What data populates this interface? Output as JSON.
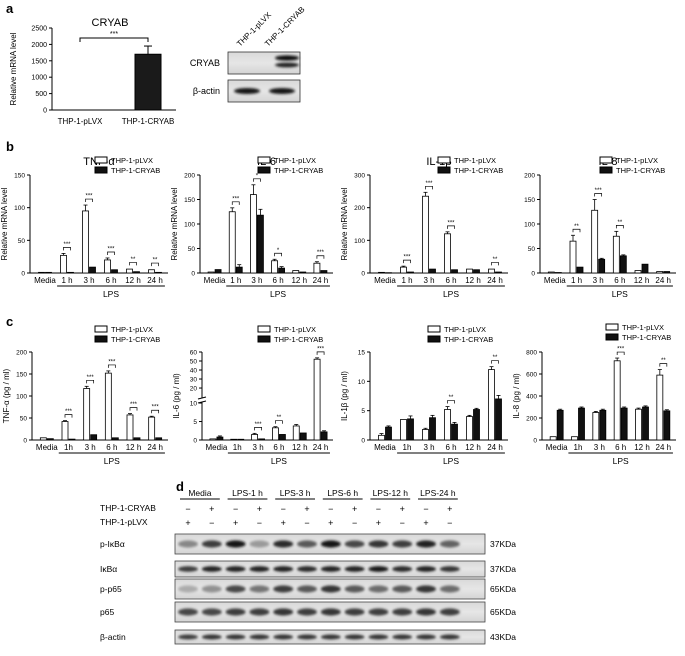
{
  "panel_labels": {
    "a": "a",
    "b": "b",
    "c": "c",
    "d": "d"
  },
  "legend": {
    "pLVX": "THP-1-pLVX",
    "CRYAB": "THP-1-CRYAB"
  },
  "time_points": [
    "Media",
    "1h",
    "3h",
    "6h",
    "12h",
    "24h"
  ],
  "panel_a": {
    "chart_data": {
      "type": "bar",
      "title": "CRYAB",
      "ylabel": "Relative mRNA level",
      "categories": [
        "THP-1-pLVX",
        "THP-1-CRYAB"
      ],
      "values": [
        0,
        1700
      ],
      "errors": [
        0,
        250
      ],
      "ylim": [
        0,
        2500
      ],
      "yticks": [
        0,
        500,
        1000,
        1500,
        2000,
        2500
      ],
      "significance": "***"
    },
    "blot": {
      "lanes": [
        "THP-1-pLVX",
        "THP-1-CRYAB"
      ],
      "rows": [
        "CRYAB",
        "β-actin"
      ]
    }
  },
  "panel_b": {
    "xlabel": "LPS",
    "ticklabels": [
      "Media",
      "1 h",
      "3 h",
      "6 h",
      "12 h",
      "24 h"
    ],
    "chart_data": [
      {
        "type": "bar",
        "title": "TNF-α",
        "ylabel": "Relative mRNA level",
        "ylim": [
          0,
          150
        ],
        "yticks": [
          0,
          50,
          100,
          150
        ],
        "series": [
          {
            "name": "THP-1-pLVX",
            "values": [
              1,
              27,
              95,
              20,
              6,
              5
            ],
            "errors": [
              0.5,
              3,
              9,
              3,
              1,
              1
            ]
          },
          {
            "name": "THP-1-CRYAB",
            "values": [
              1,
              1,
              9,
              5,
              2,
              1
            ],
            "errors": [
              0.3,
              0.3,
              1,
              1,
              0.5,
              0.3
            ]
          }
        ],
        "significance": [
          "",
          "***",
          "***",
          "***",
          "**",
          "**"
        ]
      },
      {
        "type": "bar",
        "title": "IL-6",
        "ylabel": "Relative mRNA level",
        "ylim": [
          0,
          200
        ],
        "yticks": [
          0,
          50,
          100,
          150,
          200
        ],
        "series": [
          {
            "name": "THP-1-pLVX",
            "values": [
              2,
              125,
              160,
              25,
              5,
              20
            ],
            "errors": [
              0.5,
              8,
              20,
              3,
              1,
              3
            ]
          },
          {
            "name": "THP-1-CRYAB",
            "values": [
              7,
              12,
              118,
              10,
              2,
              5
            ],
            "errors": [
              1,
              5,
              12,
              3,
              0.5,
              1
            ]
          }
        ],
        "significance": [
          "",
          "***",
          "*",
          "*",
          "",
          "***"
        ]
      },
      {
        "type": "bar",
        "title": "IL-1β",
        "ylabel": "Relative mRNA level",
        "ylim": [
          0,
          300
        ],
        "yticks": [
          0,
          100,
          200,
          300
        ],
        "series": [
          {
            "name": "THP-1-pLVX",
            "values": [
              2,
              18,
              235,
              120,
              12,
              12
            ],
            "errors": [
              0.5,
              3,
              12,
              6,
              2,
              2
            ]
          },
          {
            "name": "THP-1-CRYAB",
            "values": [
              1,
              3,
              12,
              10,
              10,
              3
            ],
            "errors": [
              0.3,
              1,
              1,
              1,
              1,
              0.5
            ]
          }
        ],
        "significance": [
          "",
          "***",
          "***",
          "***",
          "",
          "**"
        ]
      },
      {
        "type": "bar",
        "title": "IL-8",
        "ylabel": "",
        "ylim": [
          0,
          200
        ],
        "yticks": [
          0,
          50,
          100,
          150,
          200
        ],
        "series": [
          {
            "name": "THP-1-pLVX",
            "values": [
              2,
              65,
              128,
              75,
              5,
              3
            ],
            "errors": [
              0.5,
              12,
              22,
              10,
              1,
              1
            ]
          },
          {
            "name": "THP-1-CRYAB",
            "values": [
              1,
              12,
              28,
              35,
              18,
              3
            ],
            "errors": [
              0.3,
              1,
              2,
              2,
              1,
              0.5
            ]
          }
        ],
        "significance": [
          "",
          "**",
          "***",
          "**",
          "",
          ""
        ]
      }
    ]
  },
  "panel_c": {
    "xlabel": "LPS",
    "ticklabels": [
      "Media",
      "1h",
      "3 h",
      "6 h",
      "12 h",
      "24 h"
    ],
    "chart_data": [
      {
        "type": "bar",
        "title": "",
        "ylabel": "TNF-α (pg / ml)",
        "ylim": [
          0,
          200
        ],
        "yticks": [
          0,
          50,
          100,
          150,
          200
        ],
        "series": [
          {
            "name": "THP-1-pLVX",
            "values": [
              5,
              42,
              117,
              152,
              57,
              52
            ],
            "errors": [
              1,
              2,
              5,
              5,
              3,
              2
            ]
          },
          {
            "name": "THP-1-CRYAB",
            "values": [
              3,
              2,
              12,
              5,
              5,
              5
            ],
            "errors": [
              1,
              0.5,
              1,
              1,
              1,
              1
            ]
          }
        ],
        "significance": [
          "",
          "***",
          "***",
          "***",
          "***",
          "***"
        ]
      },
      {
        "type": "bar",
        "title": "",
        "ylabel": "IL-6 (pg / ml)",
        "axis_break": {
          "lower": [
            0,
            10
          ],
          "upper": [
            10,
            60
          ]
        },
        "yticks": [
          0,
          5,
          10,
          20,
          30,
          40,
          50,
          60
        ],
        "series": [
          {
            "name": "THP-1-pLVX",
            "values": [
              0.3,
              0.2,
              1.5,
              3.3,
              3.8,
              52
            ],
            "errors": [
              0.2,
              0.1,
              0.3,
              0.3,
              0.4,
              1.5
            ]
          },
          {
            "name": "THP-1-CRYAB",
            "values": [
              0.8,
              0.2,
              0.3,
              1.5,
              1.9,
              2.2
            ],
            "errors": [
              0.3,
              0.1,
              0.1,
              0.2,
              0.2,
              0.3
            ]
          }
        ],
        "significance": [
          "",
          "",
          "***",
          "**",
          "",
          "***"
        ]
      },
      {
        "type": "bar",
        "title": "",
        "ylabel": "IL-1β (pg / ml)",
        "ylim": [
          0,
          15
        ],
        "yticks": [
          0,
          5,
          10,
          15
        ],
        "series": [
          {
            "name": "THP-1-pLVX",
            "values": [
              0.8,
              3.5,
              1.8,
              5.2,
              4,
              12
            ],
            "errors": [
              0.3,
              0.1,
              0.2,
              0.5,
              0.2,
              0.5
            ]
          },
          {
            "name": "THP-1-CRYAB",
            "values": [
              2.2,
              3.6,
              3.8,
              2.7,
              5.2,
              7
            ],
            "errors": [
              0.2,
              0.5,
              0.4,
              0.3,
              0.2,
              0.6
            ]
          }
        ],
        "significance": [
          "",
          "",
          "",
          "**",
          "",
          "**"
        ]
      },
      {
        "type": "bar",
        "title": "",
        "ylabel": "IL-8 (pg / ml)",
        "ylim": [
          0,
          800
        ],
        "yticks": [
          0,
          200,
          400,
          600,
          800
        ],
        "series": [
          {
            "name": "THP-1-pLVX",
            "values": [
              30,
              30,
              250,
              720,
              280,
              590
            ],
            "errors": [
              5,
              5,
              10,
              25,
              10,
              50
            ]
          },
          {
            "name": "THP-1-CRYAB",
            "values": [
              270,
              290,
              270,
              290,
              300,
              265
            ],
            "errors": [
              10,
              10,
              10,
              10,
              10,
              10
            ]
          }
        ],
        "significance": [
          "",
          "",
          "",
          "***",
          "",
          "**"
        ]
      }
    ]
  },
  "panel_d": {
    "groups": [
      "Media",
      "LPS-1 h",
      "LPS-3 h",
      "LPS-6 h",
      "LPS-12 h",
      "LPS-24 h"
    ],
    "row_labels": [
      "THP-1-CRYAB",
      "THP-1-pLVX"
    ],
    "cryab_signs": [
      "−",
      "+",
      "−",
      "+",
      "−",
      "+",
      "−",
      "+",
      "−",
      "+",
      "−",
      "+"
    ],
    "plvx_signs": [
      "+",
      "−",
      "+",
      "−",
      "+",
      "−",
      "+",
      "−",
      "+",
      "−",
      "+",
      "−"
    ],
    "blots": [
      {
        "label": "p-IκBα",
        "kda": "37KDa"
      },
      {
        "label": "IκBα",
        "kda": "37KDa"
      },
      {
        "label": "p-p65",
        "kda": "65KDa"
      },
      {
        "label": "p65",
        "kda": "65KDa"
      },
      {
        "label": "β-actin",
        "kda": "43KDa"
      }
    ]
  }
}
